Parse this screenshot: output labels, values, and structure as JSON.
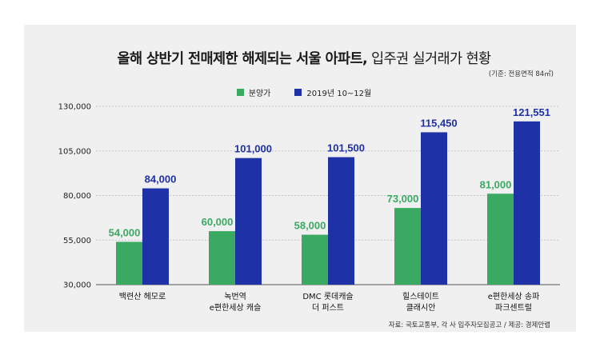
{
  "header": {
    "title_bold": "올해 상반기 전매제한 해제되는 서울 아파트,",
    "title_light": " 입주권 실거래가 현황",
    "note": "(기준: 전용면적 84㎡)"
  },
  "footer": {
    "source": "자료: 국토교통부, 각 사 입주자모집공고 / 제공: 경제만랩"
  },
  "colors": {
    "green": "#3aaa63",
    "blue": "#1f31a6",
    "green_label": "#3aaa63",
    "blue_label": "#1f31a6"
  },
  "chart_data": {
    "type": "bar",
    "categories": [
      [
        "백련산 헤모로"
      ],
      [
        "녹번역",
        "e편한세상 캐슬"
      ],
      [
        "DMC 롯데캐슬",
        "더 퍼스트"
      ],
      [
        "힐스테이트",
        "클래시안"
      ],
      [
        "e편한세상 송파",
        "파크센트럴"
      ]
    ],
    "series": [
      {
        "name": "분양가",
        "values": [
          54000,
          60000,
          58000,
          73000,
          81000
        ],
        "labels": [
          "54,000",
          "60,000",
          "58,000",
          "73,000",
          "81,000"
        ]
      },
      {
        "name": "2019년 10~12월",
        "values": [
          84000,
          101000,
          101500,
          115450,
          121551
        ],
        "labels": [
          "84,000",
          "101,000",
          "101,500",
          "115,450",
          "121,551"
        ]
      }
    ],
    "yticks": [
      30000,
      55000,
      80000,
      105000,
      130000
    ],
    "ytick_labels": [
      "30,000",
      "55,000",
      "80,000",
      "105,000",
      "130,000"
    ],
    "ylim": [
      30000,
      130000
    ],
    "grid": "dashed-horizontal",
    "legend_position": "top-center"
  }
}
